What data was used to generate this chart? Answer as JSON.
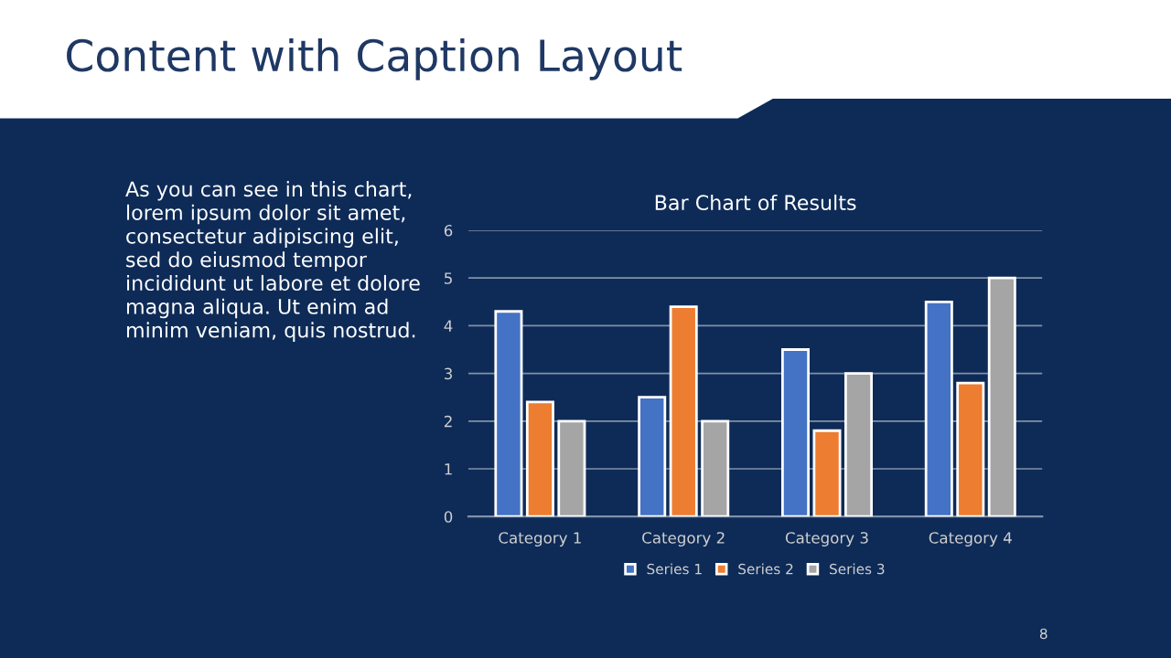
{
  "chart_data": {
    "type": "bar",
    "title": "Content with Caption Layout",
    "subtitle": "Bar Chart of Results",
    "categories": [
      "Category 1",
      "Category 2",
      "Category 3",
      "Category 4"
    ],
    "series": [
      {
        "name": "Series 1",
        "color": "#4472c4",
        "values": [
          4.3,
          2.5,
          3.5,
          4.5
        ]
      },
      {
        "name": "Series 2",
        "color": "#ed7d31",
        "values": [
          2.4,
          4.4,
          1.8,
          2.8
        ]
      },
      {
        "name": "Series 3",
        "color": "#a5a5a5",
        "values": [
          2,
          2,
          3,
          5
        ]
      }
    ],
    "ylim": [
      0,
      6
    ],
    "yticks": [
      0,
      1,
      2,
      3,
      4,
      5,
      6
    ],
    "grid": "y",
    "legend": "bottom",
    "annotations": [
      "As you can see in this chart,\nlorem ipsum dolor sit amet,\nconsectetur adipiscing elit,\nsed do eiusmod tempor\nincididunt ut labore et dolore\nmagna aliqua. Ut enim ad\nminim veniam, quis nostrud.",
      "8"
    ]
  }
}
